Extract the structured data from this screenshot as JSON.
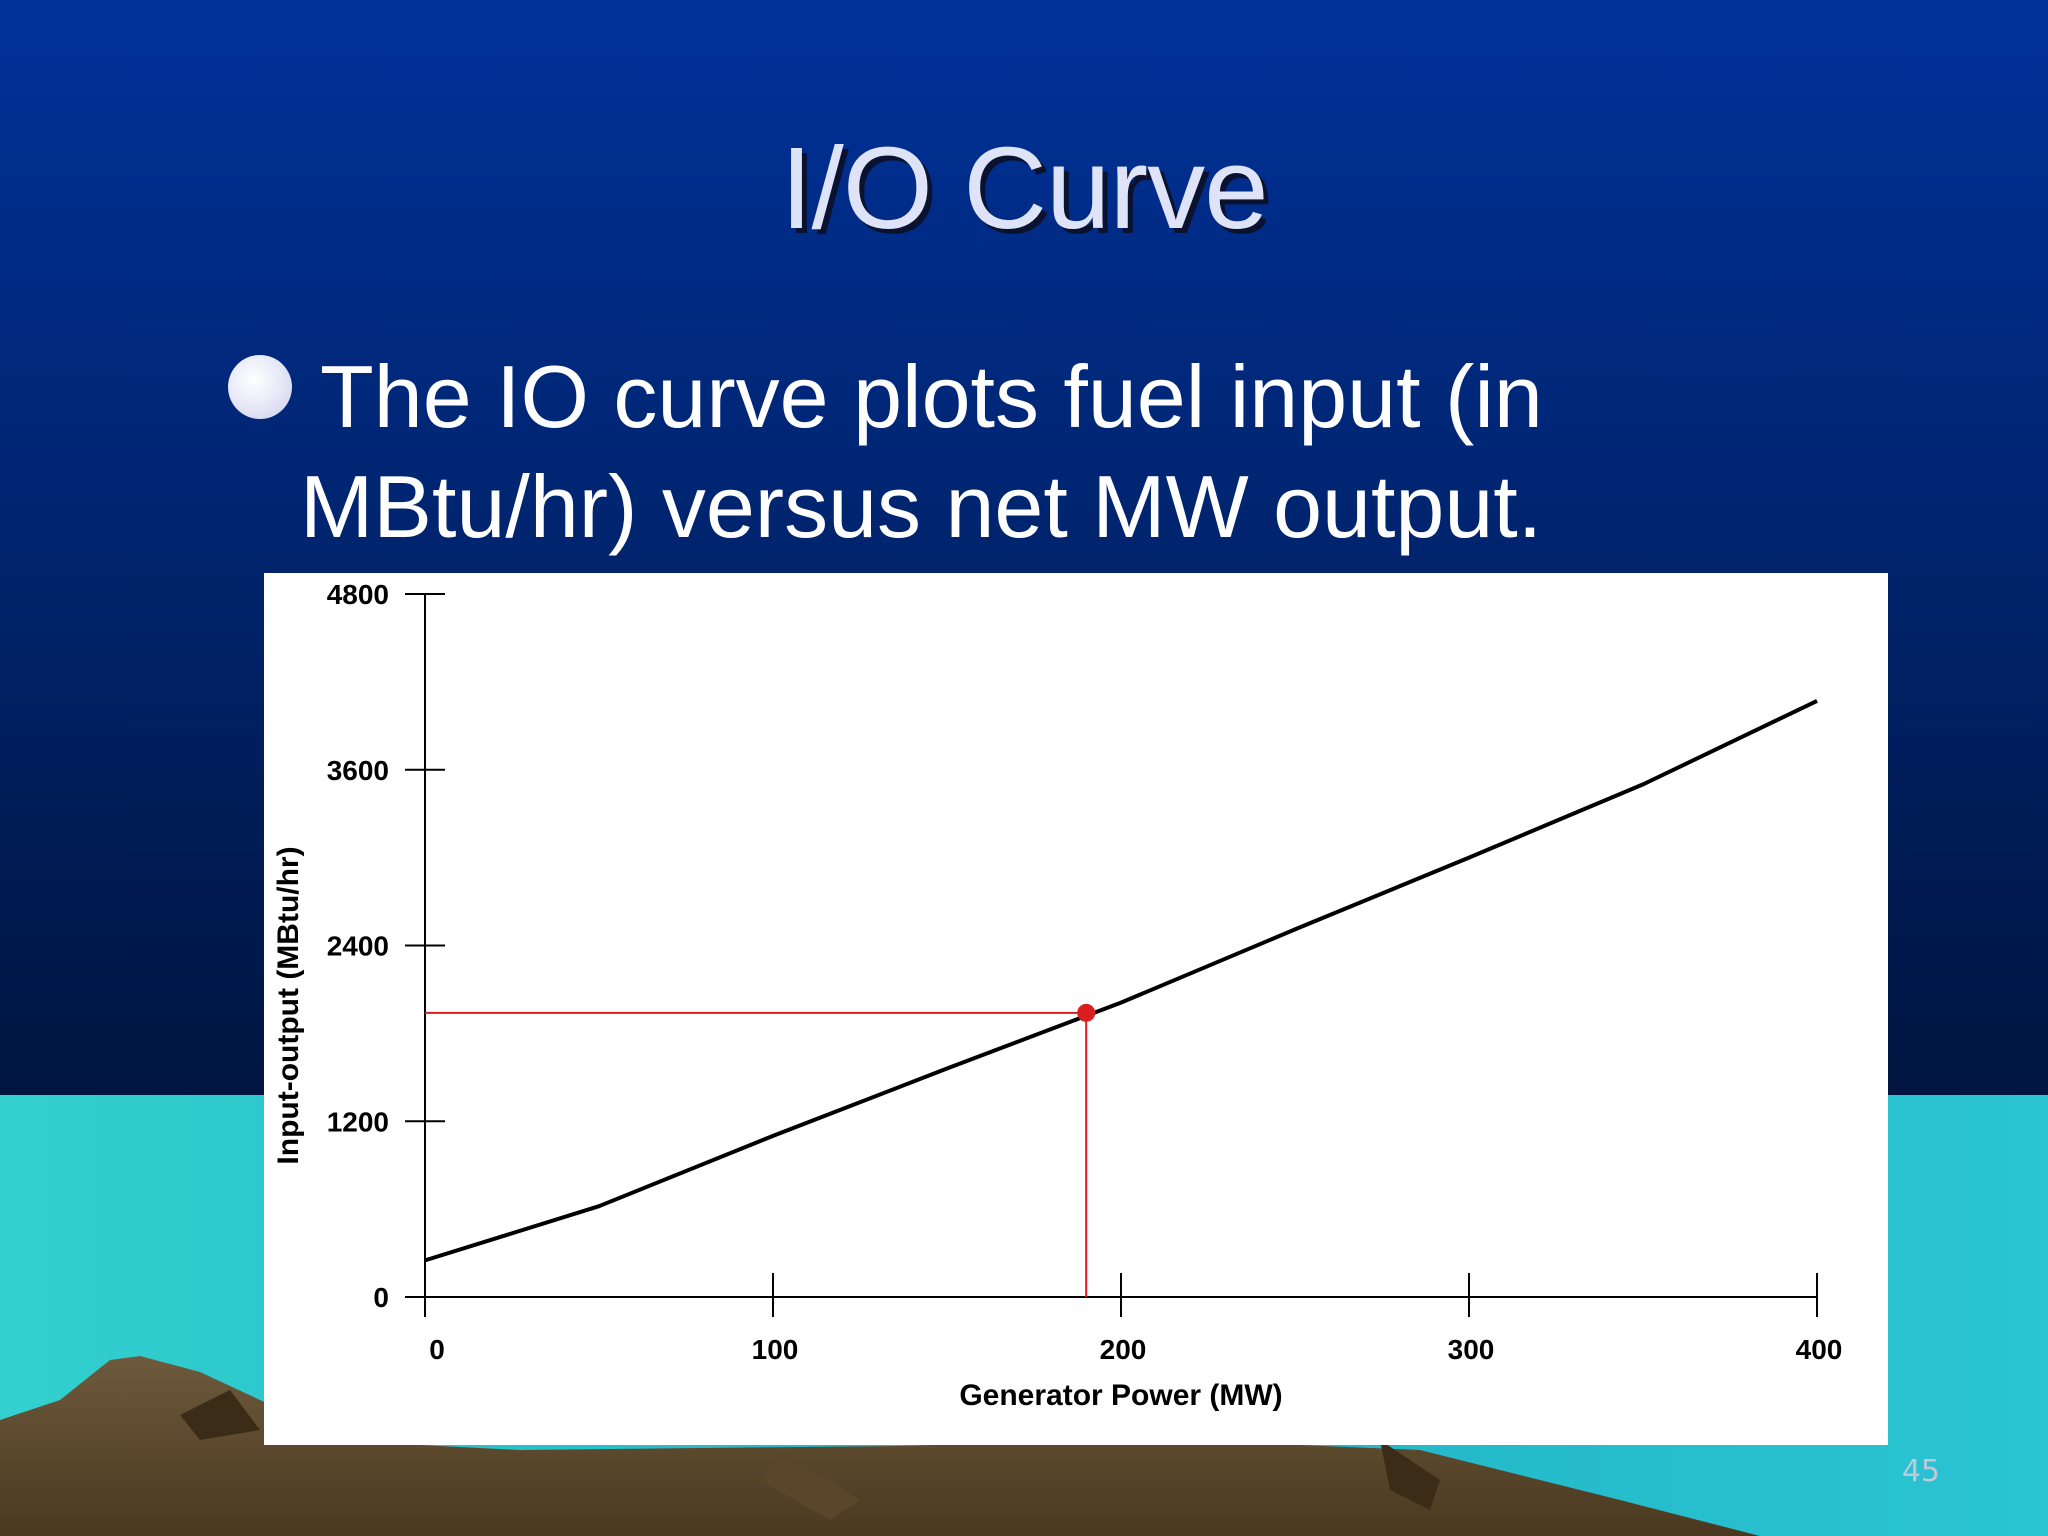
{
  "slide": {
    "title": "I/O Curve",
    "bullet": "The IO curve plots fuel input (in MBtu/hr) versus net MW output.",
    "page_number": "45"
  },
  "colors": {
    "accent_line": "#d81e1e",
    "curve": "#000000",
    "sky_top": "#00329a",
    "sky_bottom": "#001540",
    "water": "#2ec6c6"
  },
  "chart_data": {
    "type": "line",
    "xlabel": "Generator Power (MW)",
    "ylabel": "Input-output (MBtu/hr)",
    "xlim": [
      0,
      400
    ],
    "ylim": [
      0,
      4800
    ],
    "xticks": [
      0,
      100,
      200,
      300,
      400
    ],
    "yticks": [
      0,
      1200,
      2400,
      3600,
      4800
    ],
    "grid": false,
    "series": [
      {
        "x": [
          0,
          50,
          100,
          150,
          200,
          250,
          300,
          350,
          400
        ],
        "y": [
          250,
          620,
          1100,
          1560,
          2010,
          2510,
          3000,
          3500,
          4070
        ]
      }
    ],
    "highlight_point": {
      "x": 190,
      "y": 1940
    }
  }
}
